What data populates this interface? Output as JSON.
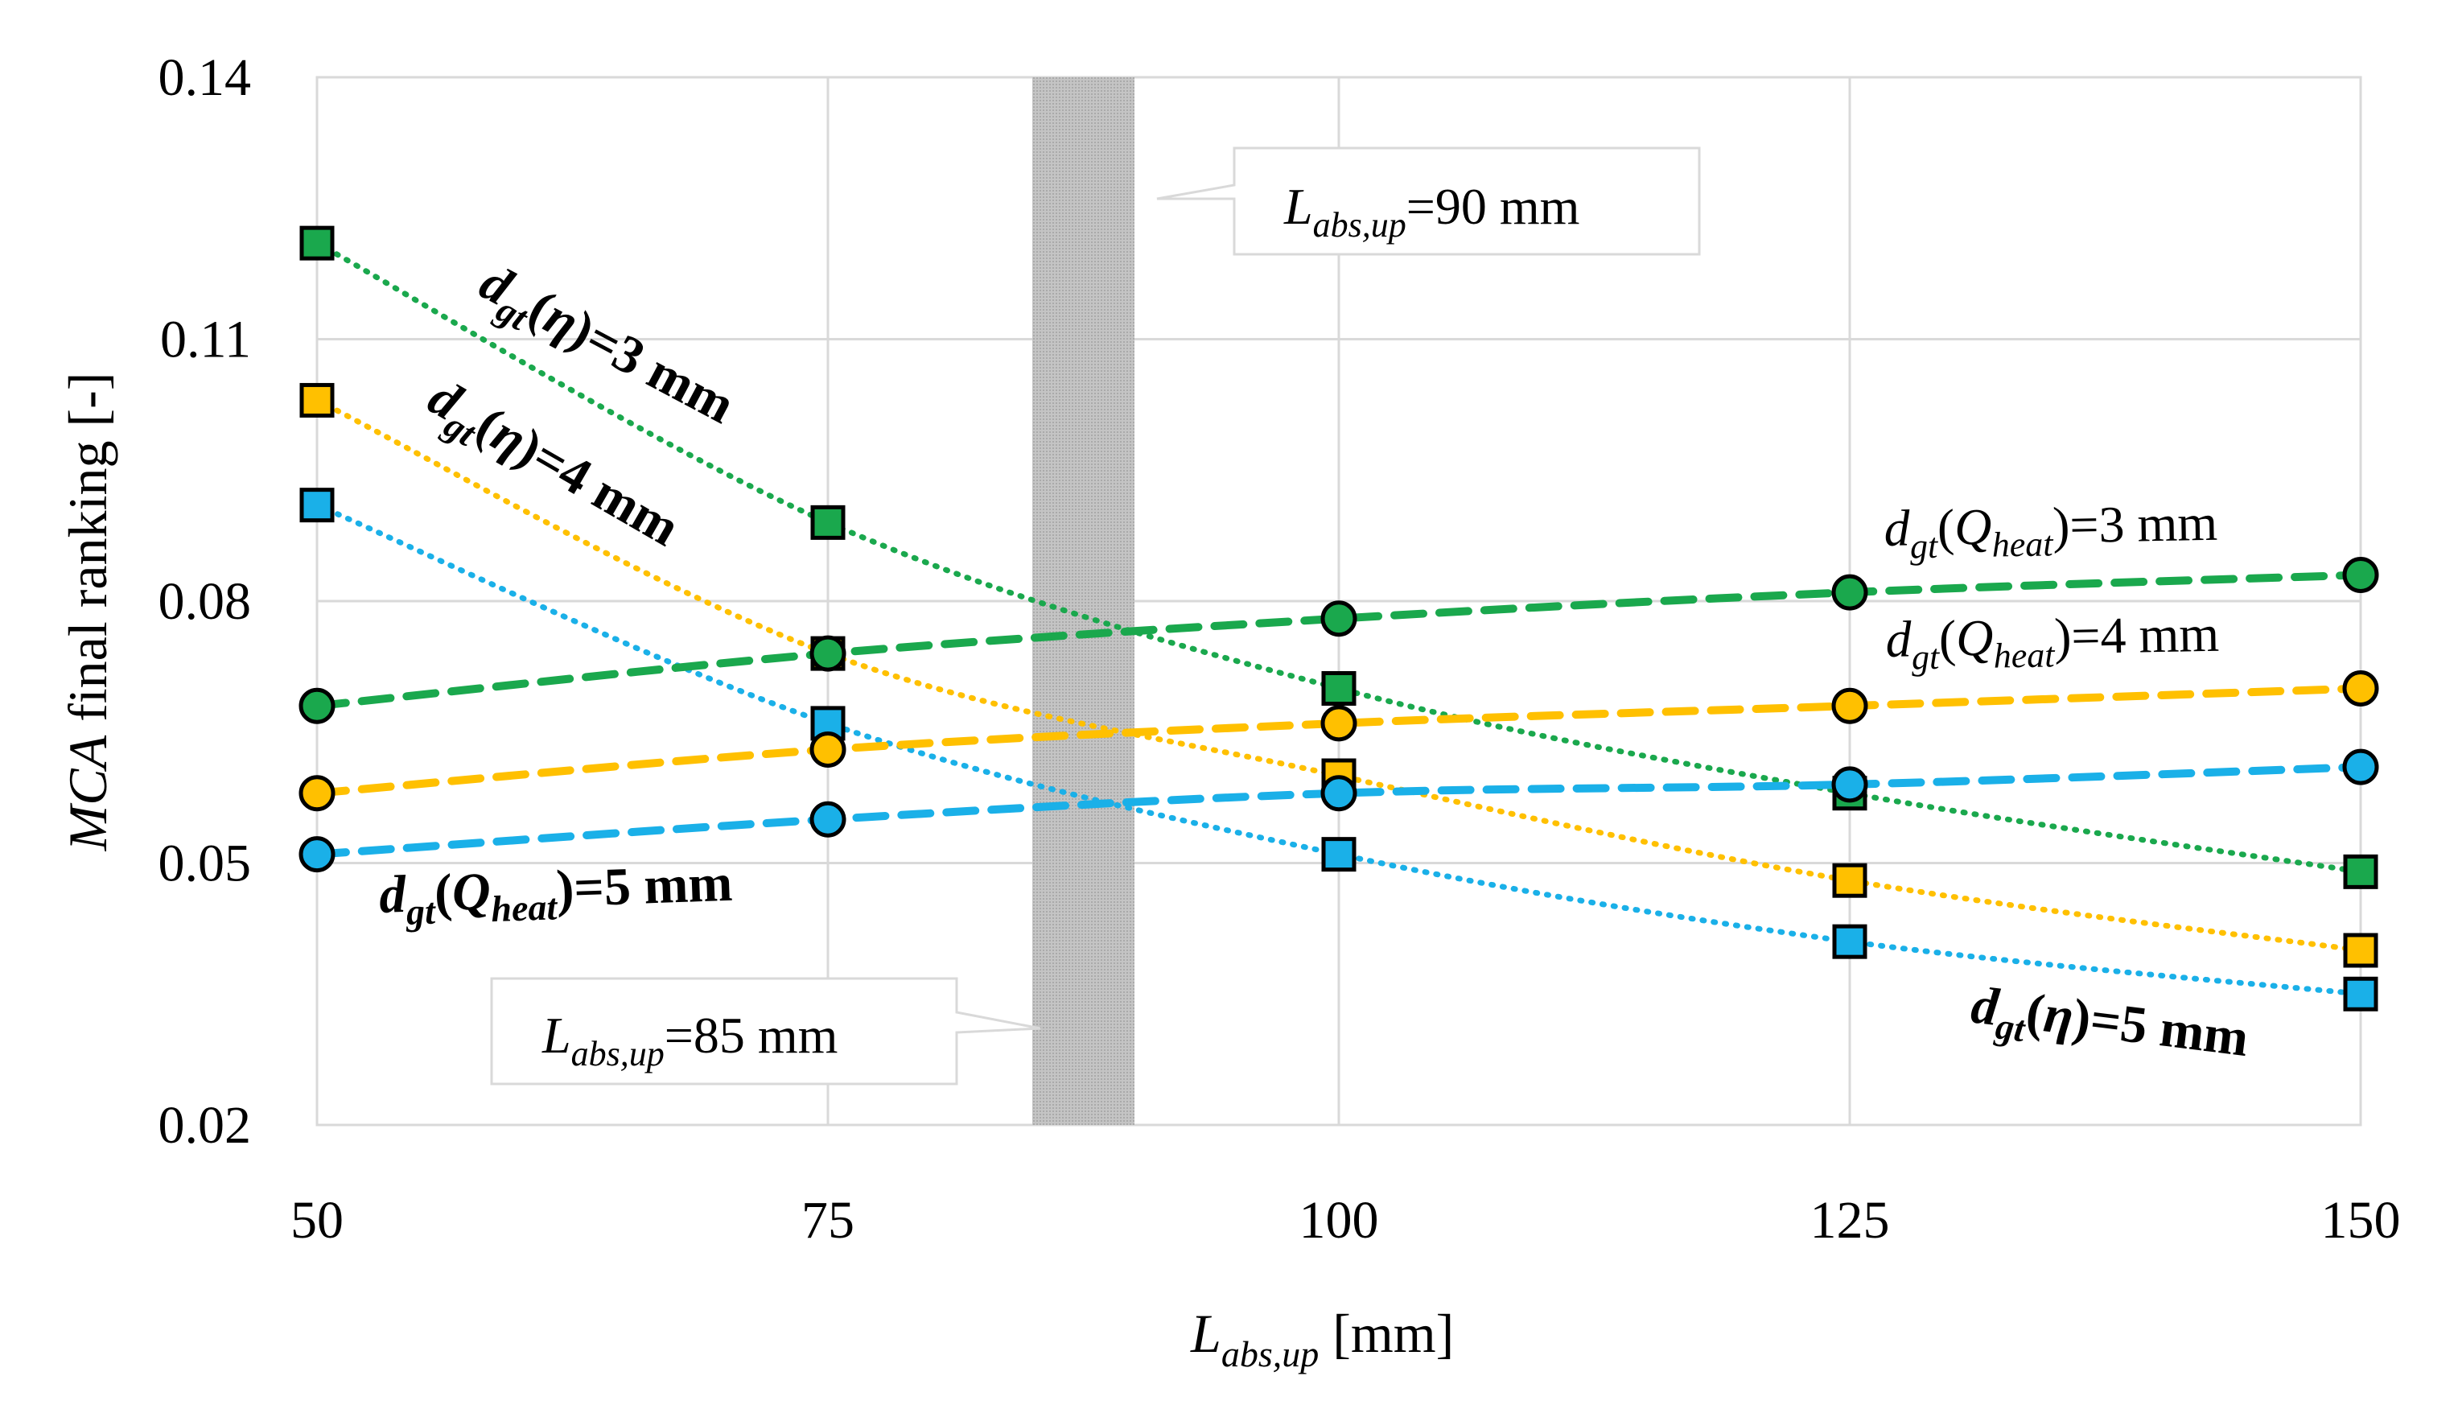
{
  "chart_data": {
    "type": "line",
    "xlabel_main": "L",
    "xlabel_sub": "abs,up",
    "xlabel_unit": " [mm]",
    "ylabel_main": "MCA",
    "ylabel_rest": " final ranking [-]",
    "xlim": [
      50,
      150
    ],
    "ylim": [
      0.02,
      0.14
    ],
    "x_ticks": [
      50,
      75,
      100,
      125,
      150
    ],
    "x_tick_labels": [
      "50",
      "75",
      "100",
      "125",
      "150"
    ],
    "y_ticks": [
      0.02,
      0.05,
      0.08,
      0.11,
      0.14
    ],
    "y_tick_labels": [
      "0.02",
      "0.05",
      "0.08",
      "0.11",
      "0.14"
    ],
    "grid": true,
    "x": [
      50,
      75,
      100,
      125,
      150
    ],
    "band": {
      "from": 85,
      "to": 90,
      "color": "#bdbdbd"
    },
    "colors": {
      "green": "#1aa84d",
      "yellow": "#ffc000",
      "blue": "#1ab0e8"
    },
    "series": [
      {
        "key": "eta3",
        "label": "d_gt(η)=3 mm",
        "marker": "square",
        "color": "#1aa84d",
        "dash": "dotted",
        "values": [
          0.121,
          0.089,
          0.07,
          0.058,
          0.049
        ]
      },
      {
        "key": "eta4",
        "label": "d_gt(η)=4 mm",
        "marker": "square",
        "color": "#ffc000",
        "dash": "dotted",
        "values": [
          0.103,
          0.074,
          0.06,
          0.048,
          0.04
        ]
      },
      {
        "key": "eta5",
        "label": "d_gt(η)=5 mm",
        "marker": "square",
        "color": "#1ab0e8",
        "dash": "dotted",
        "values": [
          0.091,
          0.066,
          0.051,
          0.041,
          0.035
        ]
      },
      {
        "key": "q3",
        "label": "d_gt(Q_heat)=3 mm",
        "marker": "circle",
        "color": "#1aa84d",
        "dash": "dashed",
        "values": [
          0.068,
          0.074,
          0.078,
          0.081,
          0.083
        ]
      },
      {
        "key": "q4",
        "label": "d_gt(Q_heat)=4 mm",
        "marker": "circle",
        "color": "#ffc000",
        "dash": "dashed",
        "values": [
          0.058,
          0.063,
          0.066,
          0.068,
          0.07
        ]
      },
      {
        "key": "q5",
        "label": "d_gt(Q_heat)=5 mm",
        "marker": "circle",
        "color": "#1ab0e8",
        "dash": "dashed",
        "values": [
          0.051,
          0.055,
          0.058,
          0.059,
          0.061
        ]
      }
    ],
    "annotations": {
      "eta3": {
        "d": "d",
        "sub": "gt",
        "open": "(",
        "sym": "η",
        "close": ")",
        "rest": "=3 mm"
      },
      "eta4": {
        "d": "d",
        "sub": "gt",
        "open": "(",
        "sym": "η",
        "close": ")",
        "rest": "=4 mm"
      },
      "eta5": {
        "d": "d",
        "sub": "gt",
        "open": "(",
        "sym": "η",
        "close": ")",
        "rest": "=5 mm"
      },
      "q3": {
        "d": "d",
        "sub": "gt",
        "open": "(",
        "sym": "Q",
        "symsub": "heat",
        "close": ")",
        "rest": "=3 mm"
      },
      "q4": {
        "d": "d",
        "sub": "gt",
        "open": "(",
        "sym": "Q",
        "symsub": "heat",
        "close": ")",
        "rest": "=4 mm"
      },
      "q5": {
        "d": "d",
        "sub": "gt",
        "open": "(",
        "sym": "Q",
        "symsub": "heat",
        "close": ")",
        "rest": "=5 mm"
      }
    },
    "callouts": {
      "l90": {
        "main": "L",
        "sub": "abs,up",
        "rest": "=90 mm"
      },
      "l85": {
        "main": "L",
        "sub": "abs,up",
        "rest": "=85 mm"
      }
    }
  }
}
